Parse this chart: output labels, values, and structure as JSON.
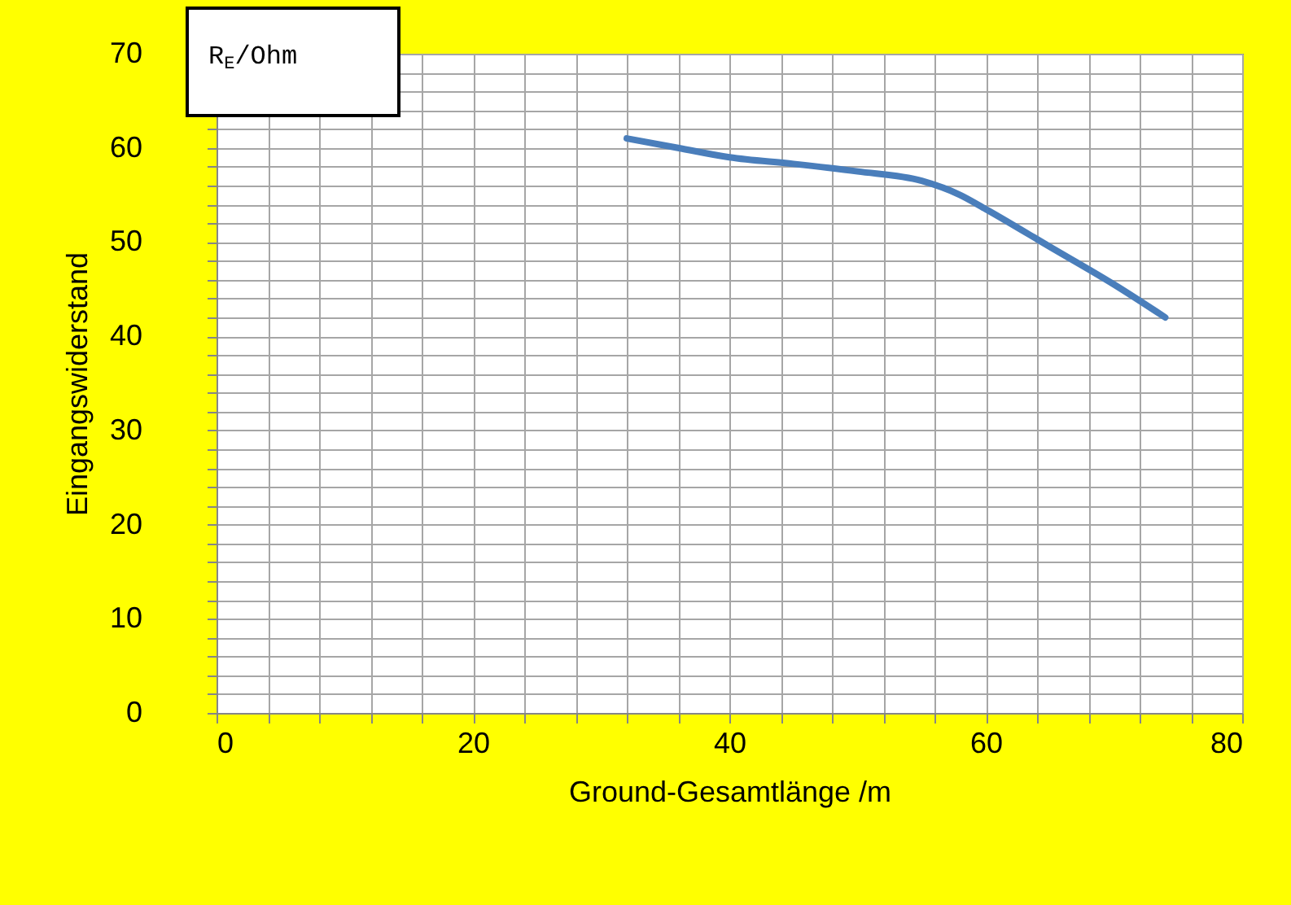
{
  "chart_data": {
    "type": "line",
    "xlabel": "Ground-Gesamtlänge /m",
    "ylabel": "Eingangswiderstand",
    "annotations": [
      "R$_{E}$/Ohm"
    ],
    "x": [
      32,
      36,
      40,
      45,
      50,
      55,
      58,
      60,
      65,
      70,
      74
    ],
    "series": [
      {
        "color": "#4a7ebb",
        "values": [
          61,
          60,
          59,
          58.3,
          57.5,
          56.5,
          55,
          53.5,
          49.5,
          45.5,
          42
        ]
      }
    ],
    "xlim": [
      0,
      80
    ],
    "ylim": [
      0,
      70
    ],
    "xticks": [
      0,
      {
        "value": 4,
        "label": null
      },
      {
        "value": 8,
        "label": null
      },
      {
        "value": 12,
        "label": null
      },
      {
        "value": 16,
        "label": null
      },
      20,
      {
        "value": 24,
        "label": null
      },
      {
        "value": 28,
        "label": null
      },
      {
        "value": 32,
        "label": null
      },
      {
        "value": 36,
        "label": null
      },
      40,
      {
        "value": 44,
        "label": null
      },
      {
        "value": 48,
        "label": null
      },
      {
        "value": 52,
        "label": null
      },
      {
        "value": 56,
        "label": null
      },
      60,
      {
        "value": 64,
        "label": null
      },
      {
        "value": 68,
        "label": null
      },
      {
        "value": 72,
        "label": null
      },
      {
        "value": 76,
        "label": null
      },
      80
    ],
    "yticks": [
      0,
      {
        "value": 2,
        "label": null
      },
      {
        "value": 4,
        "label": null
      },
      {
        "value": 6,
        "label": null
      },
      {
        "value": 8,
        "label": null
      },
      10,
      {
        "value": 12,
        "label": null
      },
      {
        "value": 14,
        "label": null
      },
      {
        "value": 16,
        "label": null
      },
      {
        "value": 18,
        "label": null
      },
      20,
      {
        "value": 22,
        "label": null
      },
      {
        "value": 24,
        "label": null
      },
      {
        "value": 26,
        "label": null
      },
      {
        "value": 28,
        "label": null
      },
      30,
      {
        "value": 32,
        "label": null
      },
      {
        "value": 34,
        "label": null
      },
      {
        "value": 36,
        "label": null
      },
      {
        "value": 38,
        "label": null
      },
      40,
      {
        "value": 42,
        "label": null
      },
      {
        "value": 44,
        "label": null
      },
      {
        "value": 46,
        "label": null
      },
      {
        "value": 48,
        "label": null
      },
      50,
      {
        "value": 52,
        "label": null
      },
      {
        "value": 54,
        "label": null
      },
      {
        "value": 56,
        "label": null
      },
      {
        "value": 58,
        "label": null
      },
      60,
      {
        "value": 62,
        "label": null
      },
      {
        "value": 64,
        "label": null
      },
      {
        "value": 66,
        "label": null
      },
      {
        "value": 68,
        "label": null
      },
      70
    ],
    "grid": true,
    "marker": "none",
    "line_style": "solid"
  }
}
